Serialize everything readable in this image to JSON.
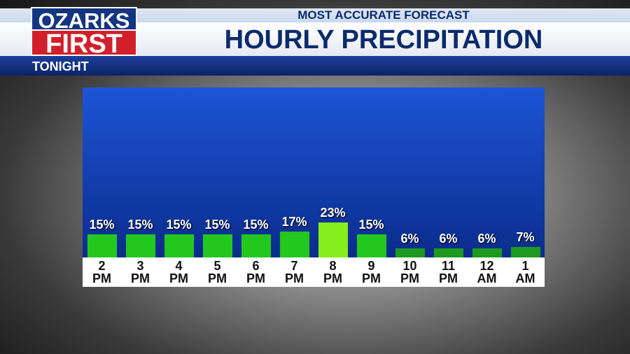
{
  "logo": {
    "line1": "OZARKS",
    "line2": "FIRST"
  },
  "header": {
    "subtitle": "MOST ACCURATE FORECAST",
    "title": "HOURLY PRECIPITATION",
    "section": "TONIGHT"
  },
  "chart_data": {
    "type": "bar",
    "categories": [
      "2 PM",
      "3 PM",
      "4 PM",
      "5 PM",
      "6 PM",
      "7 PM",
      "8 PM",
      "9 PM",
      "10 PM",
      "11 PM",
      "12 AM",
      "1 AM"
    ],
    "values": [
      15,
      15,
      15,
      15,
      15,
      17,
      23,
      15,
      6,
      6,
      6,
      7
    ],
    "value_labels": [
      "15%",
      "15%",
      "15%",
      "15%",
      "15%",
      "17%",
      "23%",
      "15%",
      "6%",
      "6%",
      "6%",
      "7%"
    ],
    "colors": [
      "#22c81e",
      "#22c81e",
      "#22c81e",
      "#22c81e",
      "#22c81e",
      "#22c81e",
      "#86ee1c",
      "#22c81e",
      "#1e9a1e",
      "#1e9a1e",
      "#1e9a1e",
      "#1e9a1e"
    ]
  }
}
